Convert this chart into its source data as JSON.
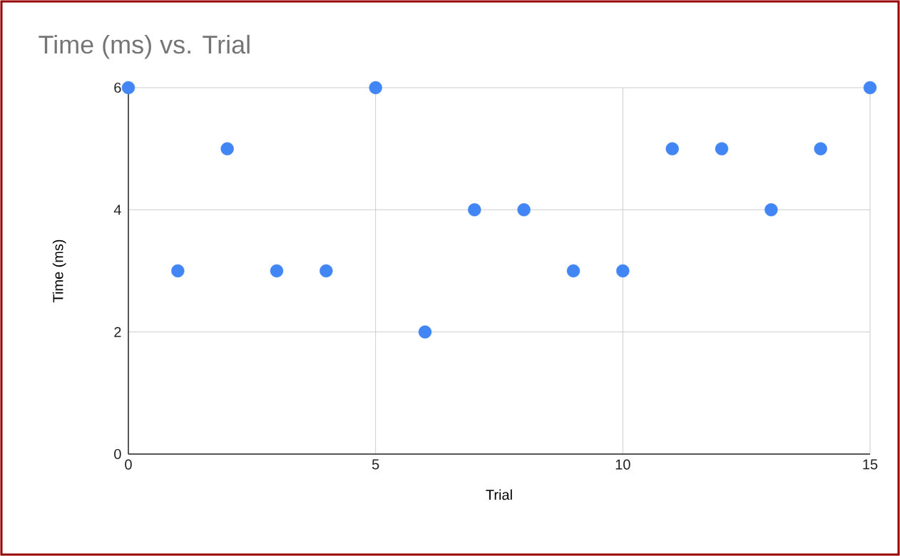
{
  "chart_data": {
    "type": "scatter",
    "title": "Time (ms) vs. Trial",
    "xlabel": "Trial",
    "ylabel": "Time (ms)",
    "x": [
      0,
      1,
      2,
      3,
      4,
      5,
      6,
      7,
      8,
      9,
      10,
      11,
      12,
      13,
      14,
      15
    ],
    "values": [
      6,
      3,
      5,
      3,
      3,
      6,
      2,
      4,
      4,
      3,
      3,
      5,
      5,
      4,
      5,
      6
    ],
    "color": "#4285f4",
    "xlim": [
      0,
      15
    ],
    "ylim": [
      0,
      6
    ],
    "xticks": [
      0,
      5,
      10,
      15
    ],
    "yticks": [
      0,
      2,
      4,
      6
    ],
    "grid": true,
    "legend": false
  }
}
